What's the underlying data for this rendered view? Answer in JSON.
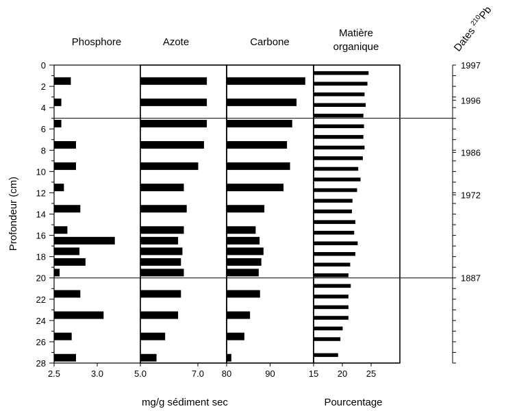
{
  "chart_data": {
    "type": "bar",
    "orientation": "horizontal",
    "ylabel": "Profondeur (cm)",
    "depth_ticks": [
      "0",
      "2",
      "4",
      "6",
      "8",
      "10",
      "12",
      "14",
      "16",
      "18",
      "20",
      "22",
      "24",
      "26",
      "28"
    ],
    "ylim": [
      0,
      28
    ],
    "xlabel_left": "mg/g sédiment sec",
    "xlabel_right": "Pourcentage",
    "panels": [
      {
        "title": "Phosphore",
        "title_line2": "",
        "xlim": [
          2.5,
          3.5
        ],
        "xticks": [
          {
            "value": 2.5,
            "label": "2.5"
          },
          {
            "value": 3.0,
            "label": "3.0"
          }
        ],
        "bars": [
          {
            "depth": 1.5,
            "value": 2.69
          },
          {
            "depth": 3.5,
            "value": 2.58
          },
          {
            "depth": 5.5,
            "value": 2.58
          },
          {
            "depth": 7.5,
            "value": 2.75
          },
          {
            "depth": 9.5,
            "value": 2.75
          },
          {
            "depth": 11.5,
            "value": 2.61
          },
          {
            "depth": 13.5,
            "value": 2.8
          },
          {
            "depth": 15.5,
            "value": 2.65
          },
          {
            "depth": 16.5,
            "value": 3.2
          },
          {
            "depth": 17.5,
            "value": 2.79
          },
          {
            "depth": 18.5,
            "value": 2.86
          },
          {
            "depth": 19.5,
            "value": 2.56
          },
          {
            "depth": 21.5,
            "value": 2.8
          },
          {
            "depth": 23.5,
            "value": 3.07
          },
          {
            "depth": 25.5,
            "value": 2.7
          },
          {
            "depth": 27.5,
            "value": 2.75
          }
        ]
      },
      {
        "title": "Azote",
        "title_line2": "",
        "xlim": [
          5.0,
          8.0
        ],
        "xticks": [
          {
            "value": 5.0,
            "label": "5.0"
          },
          {
            "value": 7.0,
            "label": "7.0"
          }
        ],
        "bars": [
          {
            "depth": 1.5,
            "value": 7.3
          },
          {
            "depth": 3.5,
            "value": 7.3
          },
          {
            "depth": 5.5,
            "value": 7.3
          },
          {
            "depth": 7.5,
            "value": 7.2
          },
          {
            "depth": 9.5,
            "value": 7.0
          },
          {
            "depth": 11.5,
            "value": 6.5
          },
          {
            "depth": 13.5,
            "value": 6.6
          },
          {
            "depth": 15.5,
            "value": 6.5
          },
          {
            "depth": 16.5,
            "value": 6.3
          },
          {
            "depth": 17.5,
            "value": 6.45
          },
          {
            "depth": 18.5,
            "value": 6.4
          },
          {
            "depth": 19.5,
            "value": 6.5
          },
          {
            "depth": 21.5,
            "value": 6.4
          },
          {
            "depth": 23.5,
            "value": 6.3
          },
          {
            "depth": 25.5,
            "value": 5.85
          },
          {
            "depth": 27.5,
            "value": 5.55
          }
        ]
      },
      {
        "title": "Carbone",
        "title_line2": "",
        "xlim": [
          80,
          100
        ],
        "xticks": [
          {
            "value": 80,
            "label": "80"
          },
          {
            "value": 90,
            "label": "90"
          }
        ],
        "bars": [
          {
            "depth": 1.5,
            "value": 98.0
          },
          {
            "depth": 3.5,
            "value": 96.0
          },
          {
            "depth": 5.5,
            "value": 95.0
          },
          {
            "depth": 7.5,
            "value": 93.8
          },
          {
            "depth": 9.5,
            "value": 94.5
          },
          {
            "depth": 11.5,
            "value": 93.0
          },
          {
            "depth": 13.5,
            "value": 88.6
          },
          {
            "depth": 15.5,
            "value": 86.6
          },
          {
            "depth": 16.5,
            "value": 87.5
          },
          {
            "depth": 17.5,
            "value": 88.4
          },
          {
            "depth": 18.5,
            "value": 87.9
          },
          {
            "depth": 19.5,
            "value": 87.3
          },
          {
            "depth": 21.5,
            "value": 87.6
          },
          {
            "depth": 23.5,
            "value": 85.3
          },
          {
            "depth": 25.5,
            "value": 84.0
          },
          {
            "depth": 27.5,
            "value": 81.0
          }
        ]
      },
      {
        "title": "Matière",
        "title_line2": "organique",
        "xlim": [
          15,
          30
        ],
        "xticks": [
          {
            "value": 15,
            "label": "15"
          },
          {
            "value": 20,
            "label": "20"
          },
          {
            "value": 25,
            "label": "25"
          }
        ],
        "bars": [
          {
            "depth": 0.75,
            "value": 24.5
          },
          {
            "depth": 1.75,
            "value": 24.3
          },
          {
            "depth": 2.75,
            "value": 23.8
          },
          {
            "depth": 3.75,
            "value": 24.0
          },
          {
            "depth": 4.75,
            "value": 23.6
          },
          {
            "depth": 5.75,
            "value": 23.7
          },
          {
            "depth": 6.75,
            "value": 23.6
          },
          {
            "depth": 7.75,
            "value": 23.8
          },
          {
            "depth": 8.75,
            "value": 23.5
          },
          {
            "depth": 9.75,
            "value": 22.7
          },
          {
            "depth": 10.75,
            "value": 23.1
          },
          {
            "depth": 11.75,
            "value": 22.5
          },
          {
            "depth": 12.75,
            "value": 21.7
          },
          {
            "depth": 13.75,
            "value": 21.6
          },
          {
            "depth": 14.75,
            "value": 22.2
          },
          {
            "depth": 15.75,
            "value": 22.0
          },
          {
            "depth": 16.75,
            "value": 22.6
          },
          {
            "depth": 17.75,
            "value": 22.2
          },
          {
            "depth": 18.75,
            "value": 21.3
          },
          {
            "depth": 19.75,
            "value": 21.0
          },
          {
            "depth": 20.75,
            "value": 21.4
          },
          {
            "depth": 21.75,
            "value": 21.0
          },
          {
            "depth": 22.75,
            "value": 21.0
          },
          {
            "depth": 23.75,
            "value": 21.0
          },
          {
            "depth": 24.75,
            "value": 20.0
          },
          {
            "depth": 25.75,
            "value": 19.6
          },
          {
            "depth": 27.25,
            "value": 19.2
          }
        ]
      }
    ],
    "horizontal_lines_at_depth": [
      5.0,
      20.0
    ],
    "dates_axis": {
      "title": "Dates",
      "superscript": "210",
      "title_suffix": "Pb",
      "labels": [
        {
          "depth": 0.0,
          "label": "1997"
        },
        {
          "depth": 3.3,
          "label": "1996"
        },
        {
          "depth": 8.2,
          "label": "1986"
        },
        {
          "depth": 12.2,
          "label": "1972"
        },
        {
          "depth": 20.0,
          "label": "1887"
        }
      ],
      "minor_tick_depths": [
        0,
        1,
        2,
        3,
        3.3,
        4,
        5,
        6,
        7,
        8,
        8.2,
        9,
        10,
        11,
        12,
        12.2,
        13,
        14,
        15,
        16,
        17,
        18,
        19,
        20,
        21,
        22,
        23,
        24,
        25,
        26,
        27,
        28
      ]
    }
  }
}
